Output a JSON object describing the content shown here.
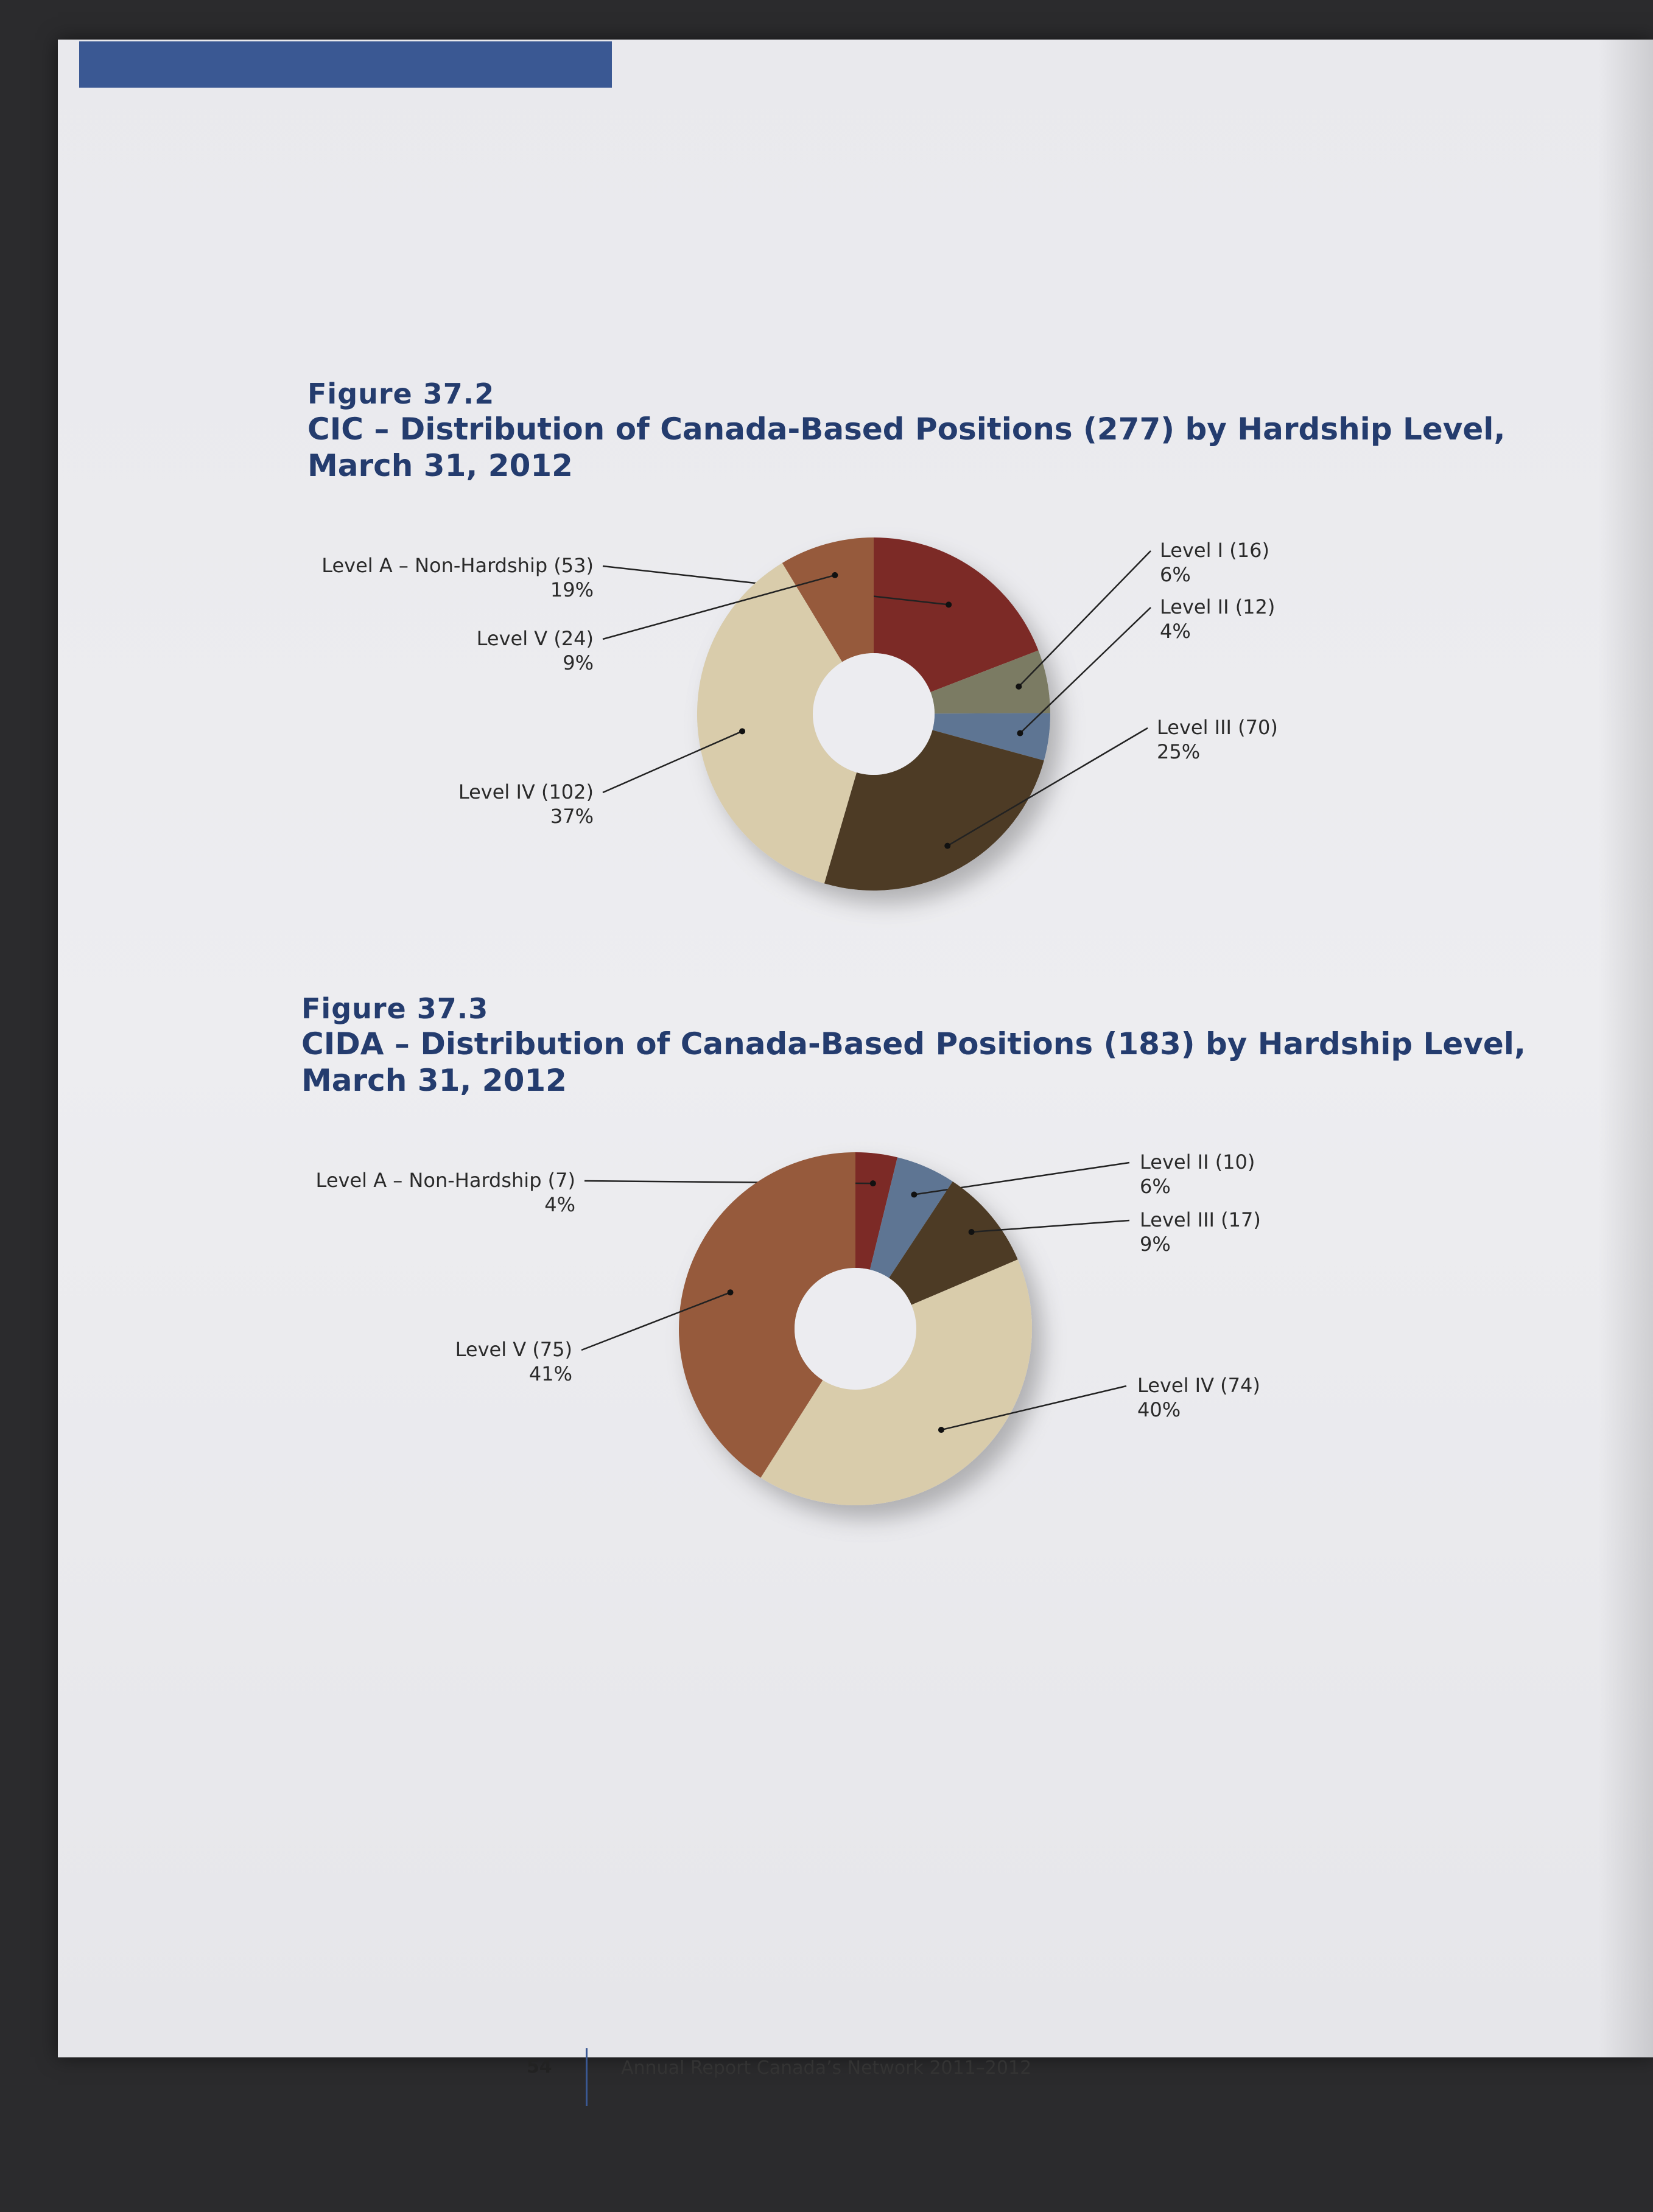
{
  "colors": {
    "level_a": "#7c2a26",
    "level_i": "#7b7b63",
    "level_ii": "#5e7593",
    "level_iii": "#4d3b25",
    "level_iv": "#d9ccab",
    "level_v": "#965a3c",
    "accent_bar": "#3a5893",
    "title_text": "#243c6e"
  },
  "figures": [
    {
      "label": "Figure 37.2",
      "title_line1": "CIC – Distribution of Canada-Based Positions (277) by Hardship Level,",
      "title_line2": "March 31, 2012"
    },
    {
      "label": "Figure 37.3",
      "title_line1": "CIDA – Distribution of Canada-Based Positions (183) by Hardship Level,",
      "title_line2": "March 31, 2012"
    }
  ],
  "chart_data": [
    {
      "type": "pie",
      "title": "CIC – Distribution of Canada-Based Positions (277) by Hardship Level, March 31, 2012",
      "slices": [
        {
          "label": "Level A – Non-Hardship (53)",
          "value": 53,
          "percent": "19%",
          "color": "#7c2a26"
        },
        {
          "label": "Level I (16)",
          "value": 16,
          "percent": "6%",
          "color": "#7b7b63"
        },
        {
          "label": "Level II (12)",
          "value": 12,
          "percent": "4%",
          "color": "#5e7593"
        },
        {
          "label": "Level III (70)",
          "value": 70,
          "percent": "25%",
          "color": "#4d3b25"
        },
        {
          "label": "Level IV (102)",
          "value": 102,
          "percent": "37%",
          "color": "#d9ccab"
        },
        {
          "label": "Level V (24)",
          "value": 24,
          "percent": "9%",
          "color": "#965a3c"
        }
      ]
    },
    {
      "type": "pie",
      "title": "CIDA – Distribution of Canada-Based Positions (183) by Hardship Level, March 31, 2012",
      "slices": [
        {
          "label": "Level A – Non-Hardship (7)",
          "value": 7,
          "percent": "4%",
          "color": "#7c2a26"
        },
        {
          "label": "Level II (10)",
          "value": 10,
          "percent": "6%",
          "color": "#5e7593"
        },
        {
          "label": "Level III (17)",
          "value": 17,
          "percent": "9%",
          "color": "#4d3b25"
        },
        {
          "label": "Level IV (74)",
          "value": 74,
          "percent": "40%",
          "color": "#d9ccab"
        },
        {
          "label": "Level V (75)",
          "value": 75,
          "percent": "41%",
          "color": "#965a3c"
        }
      ]
    }
  ],
  "footer": {
    "page_number": "54",
    "text": "Annual Report Canada’s Network 2011–2012"
  }
}
